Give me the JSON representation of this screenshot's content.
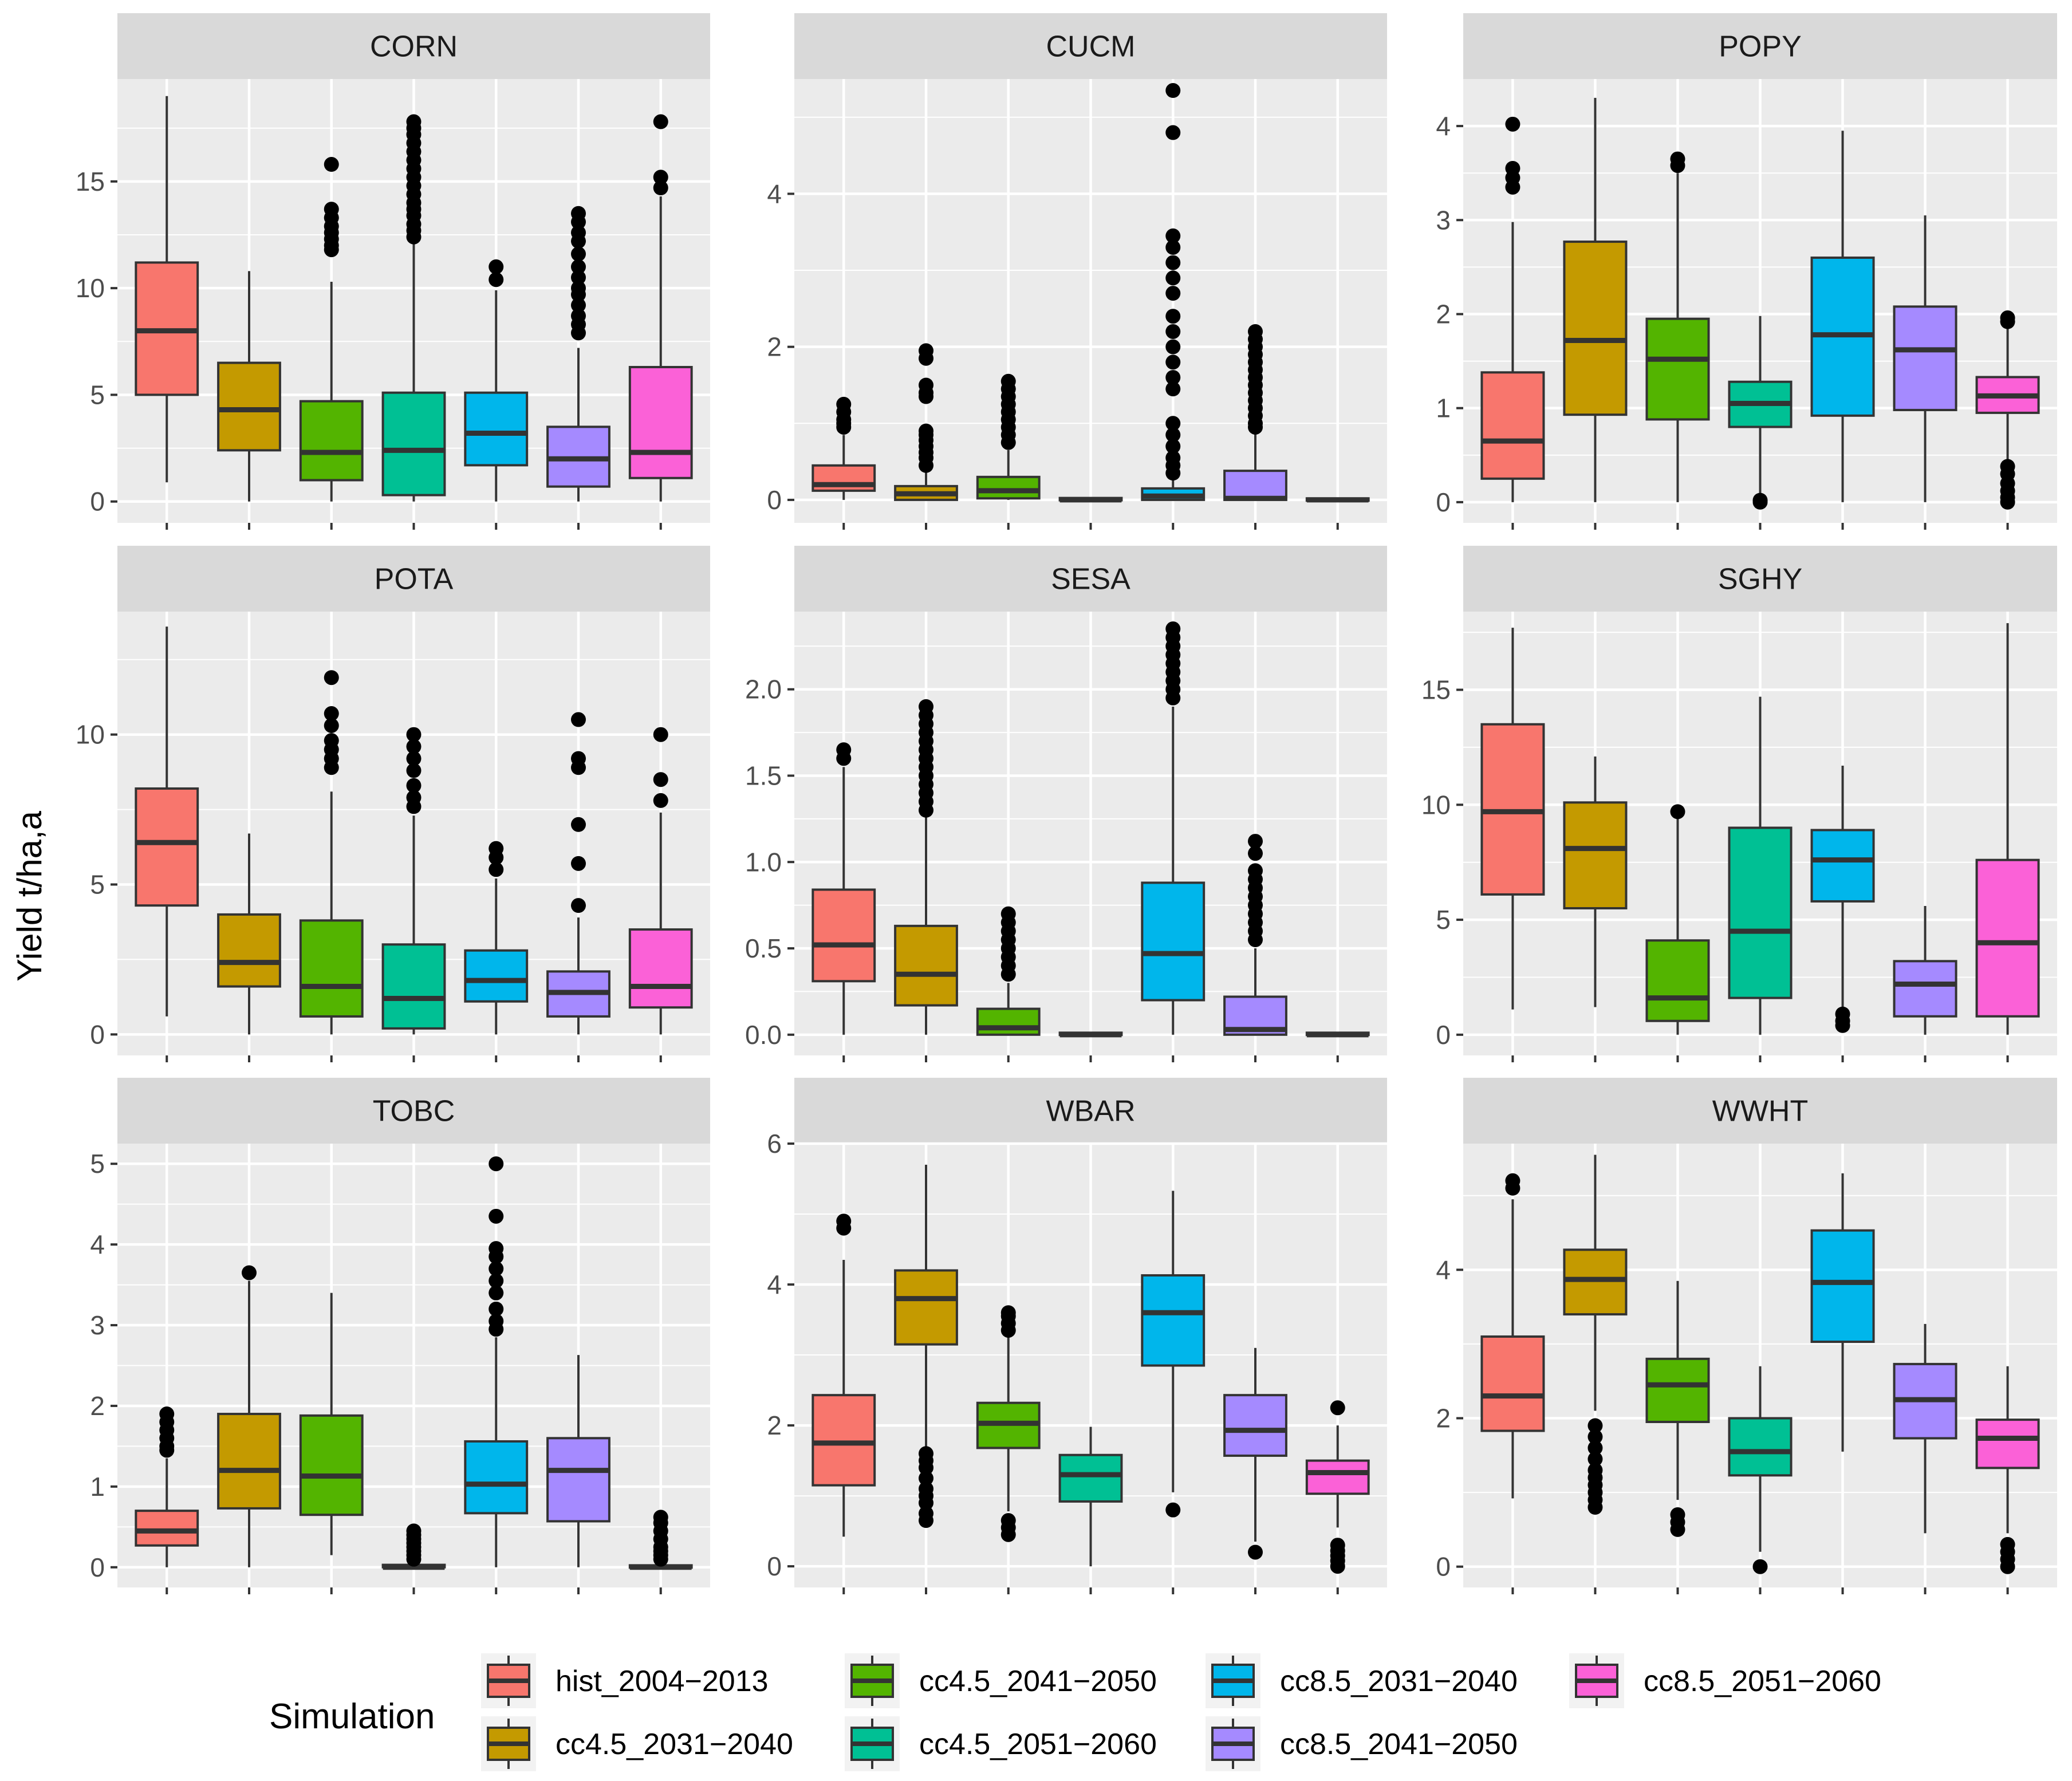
{
  "chart_data": {
    "type": "boxplot",
    "ylabel": "Yield t/ha,a",
    "legend": {
      "title": "Simulation",
      "position": "bottom",
      "entries": [
        {
          "name": "hist_2004−2013",
          "color": "#F8766D"
        },
        {
          "name": "cc4.5_2031−2040",
          "color": "#C49A00"
        },
        {
          "name": "cc4.5_2041−2050",
          "color": "#53B400"
        },
        {
          "name": "cc4.5_2051−2060",
          "color": "#00C094"
        },
        {
          "name": "cc8.5_2031−2040",
          "color": "#00B6EB"
        },
        {
          "name": "cc8.5_2041−2050",
          "color": "#A58AFF"
        },
        {
          "name": "cc8.5_2051−2060",
          "color": "#FB61D7"
        }
      ]
    },
    "panels": [
      {
        "name": "CORN",
        "ylim": [
          -1.0,
          19.8
        ],
        "yticks": [
          0,
          5,
          10,
          15
        ],
        "boxes": [
          {
            "q1": 5.0,
            "median": 8.0,
            "q3": 11.2,
            "low": 0.9,
            "high": 19.0,
            "outliers": []
          },
          {
            "q1": 2.4,
            "median": 4.3,
            "q3": 6.5,
            "low": 0.0,
            "high": 10.8,
            "outliers": []
          },
          {
            "q1": 1.0,
            "median": 2.3,
            "q3": 4.7,
            "low": 0.0,
            "high": 10.3,
            "outliers": [
              11.8,
              12.0,
              12.3,
              12.6,
              12.9,
              13.3,
              13.7,
              15.8
            ]
          },
          {
            "q1": 0.3,
            "median": 2.4,
            "q3": 5.1,
            "low": 0.0,
            "high": 12.3,
            "outliers": [
              12.4,
              12.7,
              13.0,
              13.4,
              13.7,
              14.0,
              14.4,
              14.8,
              15.2,
              15.6,
              16.0,
              16.4,
              16.8,
              17.2,
              17.5,
              17.8
            ]
          },
          {
            "q1": 1.7,
            "median": 3.2,
            "q3": 5.1,
            "low": 0.0,
            "high": 9.9,
            "outliers": [
              10.4,
              11.0
            ]
          },
          {
            "q1": 0.7,
            "median": 2.0,
            "q3": 3.5,
            "low": 0.0,
            "high": 7.2,
            "outliers": [
              7.9,
              8.3,
              8.7,
              9.2,
              9.7,
              10.0,
              10.5,
              11.0,
              11.6,
              12.2,
              12.6,
              13.1,
              13.5
            ]
          },
          {
            "q1": 1.1,
            "median": 2.3,
            "q3": 6.3,
            "low": 0.0,
            "high": 14.3,
            "outliers": [
              14.7,
              15.2,
              17.8
            ]
          }
        ]
      },
      {
        "name": "CUCM",
        "ylim": [
          -0.3,
          5.5
        ],
        "yticks": [
          0,
          2,
          4
        ],
        "boxes": [
          {
            "q1": 0.12,
            "median": 0.2,
            "q3": 0.45,
            "low": 0.0,
            "high": 0.85,
            "outliers": [
              0.95,
              1.0,
              1.05,
              1.15,
              1.25
            ]
          },
          {
            "q1": 0.0,
            "median": 0.08,
            "q3": 0.18,
            "low": 0.0,
            "high": 0.4,
            "outliers": [
              0.45,
              0.55,
              0.62,
              0.7,
              0.78,
              0.85,
              0.9,
              1.35,
              1.4,
              1.5,
              1.85,
              1.95
            ]
          },
          {
            "q1": 0.02,
            "median": 0.12,
            "q3": 0.3,
            "low": 0.0,
            "high": 0.65,
            "outliers": [
              0.75,
              0.85,
              0.95,
              1.05,
              1.15,
              1.25,
              1.35,
              1.45,
              1.55
            ]
          },
          {
            "q1": 0.0,
            "median": 0.0,
            "q3": 0.02,
            "low": 0.0,
            "high": 0.03,
            "outliers": []
          },
          {
            "q1": 0.0,
            "median": 0.05,
            "q3": 0.15,
            "low": 0.0,
            "high": 0.3,
            "outliers": [
              0.35,
              0.45,
              0.55,
              0.7,
              0.85,
              1.0,
              1.45,
              1.6,
              1.8,
              2.0,
              2.2,
              2.4,
              2.7,
              2.9,
              3.1,
              3.3,
              3.45,
              4.8,
              5.35
            ]
          },
          {
            "q1": 0.0,
            "median": 0.02,
            "q3": 0.38,
            "low": 0.0,
            "high": 0.9,
            "outliers": [
              0.95,
              1.0,
              1.1,
              1.2,
              1.3,
              1.4,
              1.5,
              1.6,
              1.7,
              1.8,
              1.9,
              2.0,
              2.1,
              2.2
            ]
          },
          {
            "q1": 0.0,
            "median": 0.0,
            "q3": 0.01,
            "low": 0.0,
            "high": 0.02,
            "outliers": []
          }
        ]
      },
      {
        "name": "POPY",
        "ylim": [
          -0.22,
          4.5
        ],
        "yticks": [
          0,
          1,
          2,
          3,
          4
        ],
        "boxes": [
          {
            "q1": 0.25,
            "median": 0.65,
            "q3": 1.38,
            "low": 0.0,
            "high": 2.98,
            "outliers": [
              3.35,
              3.45,
              3.55,
              4.02
            ]
          },
          {
            "q1": 0.93,
            "median": 1.72,
            "q3": 2.77,
            "low": 0.0,
            "high": 4.3,
            "outliers": []
          },
          {
            "q1": 0.88,
            "median": 1.52,
            "q3": 1.95,
            "low": 0.0,
            "high": 3.5,
            "outliers": [
              3.58,
              3.65
            ]
          },
          {
            "q1": 0.8,
            "median": 1.05,
            "q3": 1.28,
            "low": 0.05,
            "high": 1.98,
            "outliers": [
              0.0,
              0.02
            ]
          },
          {
            "q1": 0.92,
            "median": 1.78,
            "q3": 2.6,
            "low": 0.0,
            "high": 3.95,
            "outliers": []
          },
          {
            "q1": 0.98,
            "median": 1.62,
            "q3": 2.08,
            "low": 0.0,
            "high": 3.05,
            "outliers": []
          },
          {
            "q1": 0.95,
            "median": 1.13,
            "q3": 1.33,
            "low": 0.45,
            "high": 1.88,
            "outliers": [
              0.0,
              0.05,
              0.12,
              0.2,
              0.3,
              0.38,
              1.92,
              1.96
            ]
          }
        ]
      },
      {
        "name": "POTA",
        "ylim": [
          -0.7,
          14.1
        ],
        "yticks": [
          0,
          5,
          10
        ],
        "boxes": [
          {
            "q1": 4.3,
            "median": 6.4,
            "q3": 8.2,
            "low": 0.6,
            "high": 13.6,
            "outliers": []
          },
          {
            "q1": 1.6,
            "median": 2.4,
            "q3": 4.0,
            "low": 0.0,
            "high": 6.7,
            "outliers": []
          },
          {
            "q1": 0.6,
            "median": 1.6,
            "q3": 3.8,
            "low": 0.0,
            "high": 8.1,
            "outliers": [
              8.9,
              9.2,
              9.5,
              9.8,
              10.3,
              10.7,
              11.9
            ]
          },
          {
            "q1": 0.2,
            "median": 1.2,
            "q3": 3.0,
            "low": 0.0,
            "high": 7.3,
            "outliers": [
              7.6,
              7.9,
              8.3,
              8.8,
              9.2,
              9.6,
              10.0
            ]
          },
          {
            "q1": 1.1,
            "median": 1.8,
            "q3": 2.8,
            "low": 0.0,
            "high": 5.2,
            "outliers": [
              5.5,
              5.9,
              6.2
            ]
          },
          {
            "q1": 0.6,
            "median": 1.4,
            "q3": 2.1,
            "low": 0.0,
            "high": 3.9,
            "outliers": [
              4.3,
              5.7,
              7.0,
              8.9,
              9.2,
              10.5
            ]
          },
          {
            "q1": 0.9,
            "median": 1.6,
            "q3": 3.5,
            "low": 0.0,
            "high": 7.4,
            "outliers": [
              7.8,
              8.5,
              10.0
            ]
          }
        ]
      },
      {
        "name": "SESA",
        "ylim": [
          -0.12,
          2.45
        ],
        "yticks": [
          0.0,
          0.5,
          1.0,
          1.5,
          2.0
        ],
        "boxes": [
          {
            "q1": 0.31,
            "median": 0.52,
            "q3": 0.84,
            "low": 0.0,
            "high": 1.55,
            "outliers": [
              1.6,
              1.65
            ]
          },
          {
            "q1": 0.17,
            "median": 0.35,
            "q3": 0.63,
            "low": 0.0,
            "high": 1.28,
            "outliers": [
              1.3,
              1.35,
              1.4,
              1.45,
              1.5,
              1.55,
              1.6,
              1.65,
              1.7,
              1.75,
              1.8,
              1.85,
              1.9
            ]
          },
          {
            "q1": 0.0,
            "median": 0.04,
            "q3": 0.15,
            "low": 0.0,
            "high": 0.3,
            "outliers": [
              0.35,
              0.4,
              0.45,
              0.5,
              0.55,
              0.6,
              0.65,
              0.7
            ]
          },
          {
            "q1": 0.0,
            "median": 0.0,
            "q3": 0.01,
            "low": 0.0,
            "high": 0.01,
            "outliers": []
          },
          {
            "q1": 0.2,
            "median": 0.47,
            "q3": 0.88,
            "low": 0.0,
            "high": 1.9,
            "outliers": [
              1.95,
              2.0,
              2.05,
              2.1,
              2.15,
              2.2,
              2.25,
              2.3,
              2.35
            ]
          },
          {
            "q1": 0.0,
            "median": 0.03,
            "q3": 0.22,
            "low": 0.0,
            "high": 0.5,
            "outliers": [
              0.55,
              0.6,
              0.65,
              0.7,
              0.75,
              0.8,
              0.85,
              0.9,
              0.95,
              1.05,
              1.12
            ]
          },
          {
            "q1": 0.0,
            "median": 0.0,
            "q3": 0.01,
            "low": 0.0,
            "high": 0.01,
            "outliers": []
          }
        ]
      },
      {
        "name": "SGHY",
        "ylim": [
          -0.9,
          18.4
        ],
        "yticks": [
          0,
          5,
          10,
          15
        ],
        "boxes": [
          {
            "q1": 6.1,
            "median": 9.7,
            "q3": 13.5,
            "low": 1.1,
            "high": 17.7,
            "outliers": []
          },
          {
            "q1": 5.5,
            "median": 8.1,
            "q3": 10.1,
            "low": 1.2,
            "high": 12.1,
            "outliers": []
          },
          {
            "q1": 0.6,
            "median": 1.6,
            "q3": 4.1,
            "low": 0.0,
            "high": 9.5,
            "outliers": [
              9.7
            ]
          },
          {
            "q1": 1.6,
            "median": 4.5,
            "q3": 9.0,
            "low": 0.0,
            "high": 14.7,
            "outliers": []
          },
          {
            "q1": 5.8,
            "median": 7.6,
            "q3": 8.9,
            "low": 1.2,
            "high": 11.7,
            "outliers": [
              0.4,
              0.6,
              0.9
            ]
          },
          {
            "q1": 0.8,
            "median": 2.2,
            "q3": 3.2,
            "low": 0.0,
            "high": 5.6,
            "outliers": []
          },
          {
            "q1": 0.8,
            "median": 4.0,
            "q3": 7.6,
            "low": 0.0,
            "high": 17.9,
            "outliers": []
          }
        ]
      },
      {
        "name": "TOBC",
        "ylim": [
          -0.25,
          5.25
        ],
        "yticks": [
          0,
          1,
          2,
          3,
          4,
          5
        ],
        "boxes": [
          {
            "q1": 0.27,
            "median": 0.45,
            "q3": 0.7,
            "low": 0.0,
            "high": 1.35,
            "outliers": [
              1.45,
              1.5,
              1.6,
              1.7,
              1.8,
              1.9
            ]
          },
          {
            "q1": 0.73,
            "median": 1.2,
            "q3": 1.9,
            "low": 0.0,
            "high": 3.55,
            "outliers": [
              3.65
            ]
          },
          {
            "q1": 0.65,
            "median": 1.13,
            "q3": 1.88,
            "low": 0.15,
            "high": 3.4,
            "outliers": []
          },
          {
            "q1": 0.0,
            "median": 0.0,
            "q3": 0.03,
            "low": 0.0,
            "high": 0.05,
            "outliers": [
              0.1,
              0.15,
              0.2,
              0.25,
              0.3,
              0.35,
              0.4,
              0.45
            ]
          },
          {
            "q1": 0.67,
            "median": 1.03,
            "q3": 1.56,
            "low": 0.0,
            "high": 2.85,
            "outliers": [
              2.95,
              3.05,
              3.2,
              3.4,
              3.55,
              3.7,
              3.85,
              3.95,
              4.35,
              5.0
            ]
          },
          {
            "q1": 0.57,
            "median": 1.2,
            "q3": 1.6,
            "low": 0.0,
            "high": 2.63,
            "outliers": []
          },
          {
            "q1": 0.0,
            "median": 0.0,
            "q3": 0.02,
            "low": 0.0,
            "high": 0.04,
            "outliers": [
              0.1,
              0.15,
              0.2,
              0.25,
              0.35,
              0.45,
              0.55,
              0.62
            ]
          }
        ]
      },
      {
        "name": "WBAR",
        "ylim": [
          -0.3,
          6.0
        ],
        "yticks": [
          0,
          2,
          4,
          6
        ],
        "boxes": [
          {
            "q1": 1.15,
            "median": 1.75,
            "q3": 2.43,
            "low": 0.42,
            "high": 4.35,
            "outliers": [
              4.8,
              4.9
            ]
          },
          {
            "q1": 3.15,
            "median": 3.8,
            "q3": 4.2,
            "low": 1.7,
            "high": 5.7,
            "outliers": [
              0.65,
              0.75,
              0.9,
              1.0,
              1.1,
              1.25,
              1.4,
              1.5,
              1.6
            ]
          },
          {
            "q1": 1.68,
            "median": 2.03,
            "q3": 2.32,
            "low": 0.78,
            "high": 3.3,
            "outliers": [
              0.45,
              0.55,
              0.65,
              3.35,
              3.45,
              3.55,
              3.6
            ]
          },
          {
            "q1": 0.92,
            "median": 1.3,
            "q3": 1.58,
            "low": 0.0,
            "high": 1.98,
            "outliers": []
          },
          {
            "q1": 2.85,
            "median": 3.6,
            "q3": 4.13,
            "low": 1.05,
            "high": 5.33,
            "outliers": [
              0.8
            ]
          },
          {
            "q1": 1.57,
            "median": 1.93,
            "q3": 2.43,
            "low": 0.35,
            "high": 3.1,
            "outliers": [
              0.2
            ]
          },
          {
            "q1": 1.03,
            "median": 1.33,
            "q3": 1.5,
            "low": 0.55,
            "high": 2.0,
            "outliers": [
              0.0,
              0.08,
              0.15,
              0.22,
              0.3,
              2.25
            ]
          }
        ]
      },
      {
        "name": "WWHT",
        "ylim": [
          -0.28,
          5.7
        ],
        "yticks": [
          0,
          2,
          4
        ],
        "boxes": [
          {
            "q1": 1.83,
            "median": 2.3,
            "q3": 3.1,
            "low": 0.92,
            "high": 4.95,
            "outliers": [
              5.1,
              5.2
            ]
          },
          {
            "q1": 3.4,
            "median": 3.87,
            "q3": 4.27,
            "low": 2.1,
            "high": 5.55,
            "outliers": [
              0.8,
              0.9,
              1.0,
              1.1,
              1.2,
              1.3,
              1.45,
              1.6,
              1.75,
              1.9
            ]
          },
          {
            "q1": 1.95,
            "median": 2.45,
            "q3": 2.8,
            "low": 0.9,
            "high": 3.85,
            "outliers": [
              0.5,
              0.6,
              0.7
            ]
          },
          {
            "q1": 1.23,
            "median": 1.55,
            "q3": 2.0,
            "low": 0.2,
            "high": 2.7,
            "outliers": [
              0.0
            ]
          },
          {
            "q1": 3.03,
            "median": 3.83,
            "q3": 4.53,
            "low": 1.55,
            "high": 5.3,
            "outliers": []
          },
          {
            "q1": 1.73,
            "median": 2.25,
            "q3": 2.73,
            "low": 0.45,
            "high": 3.27,
            "outliers": []
          },
          {
            "q1": 1.33,
            "median": 1.73,
            "q3": 1.98,
            "low": 0.45,
            "high": 2.7,
            "outliers": [
              0.0,
              0.1,
              0.2,
              0.3
            ]
          }
        ]
      }
    ]
  }
}
